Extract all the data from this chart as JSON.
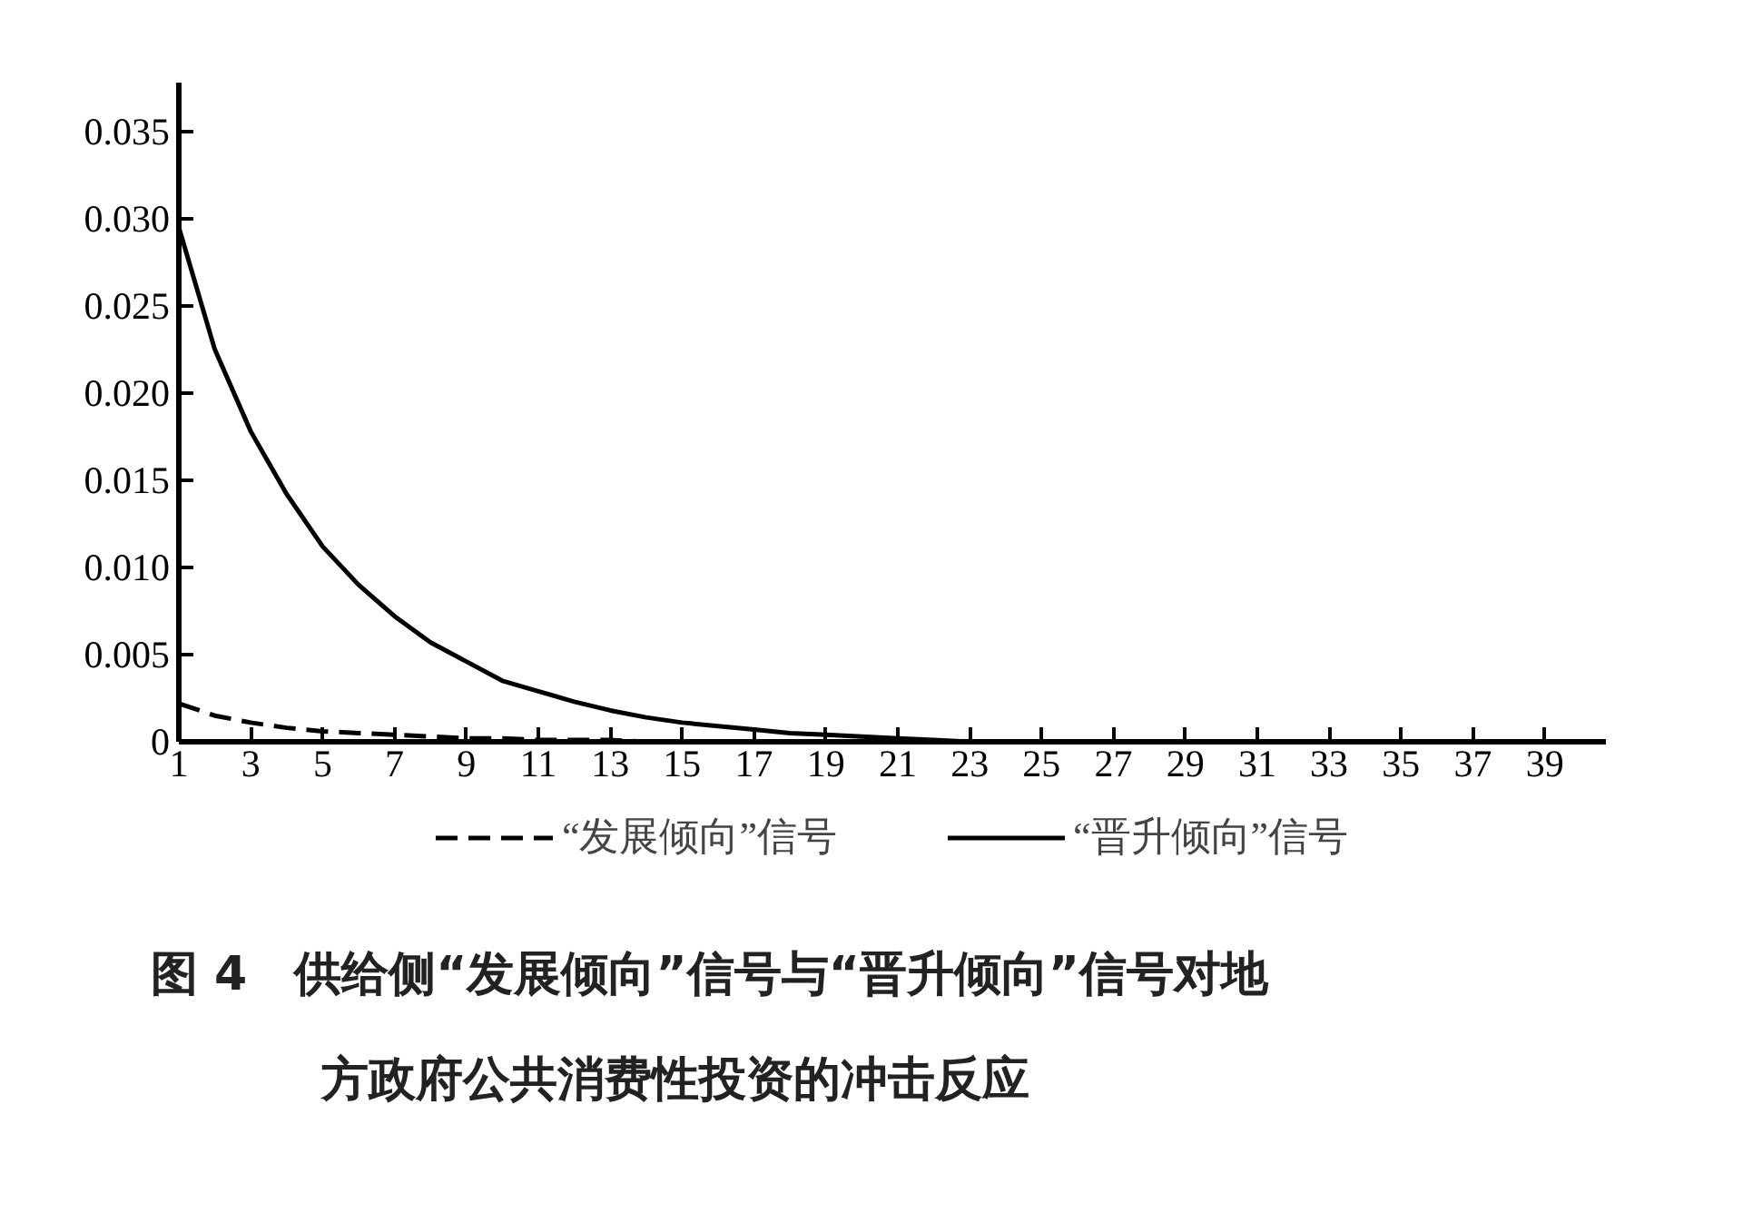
{
  "chart_data": {
    "type": "line",
    "title": "图 4　供给侧“发展倾向”信号与“晋升倾向”信号对地方政府公共消费性投资的冲击反应",
    "x": [
      1,
      2,
      3,
      4,
      5,
      6,
      7,
      8,
      9,
      10,
      11,
      12,
      13,
      14,
      15,
      16,
      17,
      18,
      19,
      20,
      21,
      22,
      23,
      24,
      25,
      26,
      27,
      28,
      29,
      30,
      31,
      32,
      33,
      34,
      35,
      36,
      37,
      38,
      39,
      40
    ],
    "series": [
      {
        "name": "“发展倾向”信号",
        "color": "#000000",
        "line_style": "dashed",
        "values": [
          0.0022,
          0.0015,
          0.0011,
          0.0008,
          0.0006,
          0.0005,
          0.0004,
          0.0003,
          0.0002,
          0.0002,
          0.0001,
          0.0001,
          0.0001,
          0,
          0,
          0,
          0,
          0,
          0,
          0,
          0,
          0,
          0,
          0,
          0,
          0,
          0,
          0,
          0,
          0,
          0,
          0,
          0,
          0,
          0,
          0,
          0,
          0,
          0,
          0
        ]
      },
      {
        "name": "“晋升倾向”信号",
        "color": "#000000",
        "line_style": "solid",
        "values": [
          0.0295,
          0.0225,
          0.0178,
          0.0142,
          0.0112,
          0.009,
          0.0072,
          0.0057,
          0.0046,
          0.0035,
          0.0029,
          0.0023,
          0.0018,
          0.0014,
          0.0011,
          0.0009,
          0.0007,
          0.0005,
          0.0004,
          0.0003,
          0.0002,
          0.0001,
          0,
          0,
          0,
          0,
          0,
          0,
          0,
          0,
          0,
          0,
          0,
          0,
          0,
          0,
          0,
          0,
          0,
          0
        ]
      }
    ],
    "xlim": [
      1,
      40.7
    ],
    "ylim": [
      0,
      0.0378
    ],
    "xticks": [
      1,
      3,
      5,
      7,
      9,
      11,
      13,
      15,
      17,
      19,
      21,
      23,
      25,
      27,
      29,
      31,
      33,
      35,
      37,
      39
    ],
    "yticks": [
      0,
      {
        "value": 0.005,
        "label": "0.005"
      },
      {
        "value": 0.01,
        "label": "0.010"
      },
      {
        "value": 0.015,
        "label": "0.015"
      },
      {
        "value": 0.02,
        "label": "0.020"
      },
      {
        "value": 0.025,
        "label": "0.025"
      },
      {
        "value": 0.03,
        "label": "0.030"
      },
      {
        "value": 0.035,
        "label": "0.035"
      }
    ],
    "legend": "bottom",
    "grid": false,
    "marker": "none"
  }
}
